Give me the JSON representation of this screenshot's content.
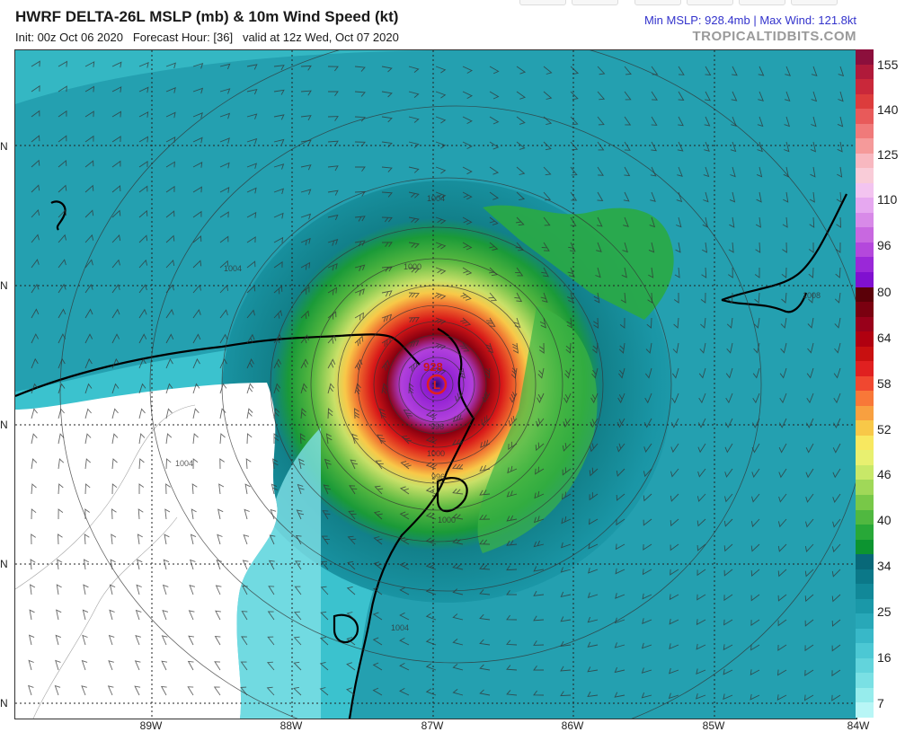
{
  "header": {
    "title": "HWRF DELTA-26L MSLP (mb) & 10m Wind Speed (kt)",
    "init": "Init: 00z Oct 06 2020",
    "forecast_hour": "Forecast Hour: [36]",
    "valid": "valid at 12z Wed, Oct 07 2020",
    "stats": "Min MSLP: 928.4mb  |  Max Wind: 121.8kt",
    "source": "TROPICALTIDBITS.COM"
  },
  "map": {
    "lon_labels": [
      "89W",
      "88W",
      "87W",
      "86W",
      "85W",
      "84W"
    ],
    "lat_labels": [
      "N",
      "N",
      "N",
      "N",
      "N"
    ],
    "center_pressure_label": "928",
    "low_marker": "L",
    "isobar_labels": [
      "1004",
      "1000",
      "996",
      "1004",
      "1004",
      "1000",
      "996",
      "1004",
      "1008",
      "1000"
    ]
  },
  "colorbar": {
    "labels": [
      "155",
      "140",
      "125",
      "110",
      "96",
      "80",
      "64",
      "58",
      "52",
      "46",
      "40",
      "34",
      "25",
      "16",
      "7"
    ],
    "colors": [
      "#8c0f3c",
      "#b01a3a",
      "#c9283a",
      "#dc3c3c",
      "#e85a5a",
      "#f07a7a",
      "#f59a9a",
      "#f8b8c0",
      "#f9ccd8",
      "#f3c4f0",
      "#e6a8f0",
      "#d88ae8",
      "#c868e0",
      "#b448dc",
      "#9a28d8",
      "#8010d0",
      "#5a0008",
      "#7a0010",
      "#98001a",
      "#b00010",
      "#c81010",
      "#e02020",
      "#f04830",
      "#f87838",
      "#f8a040",
      "#f8c848",
      "#f8e860",
      "#e8f070",
      "#c8e868",
      "#a0d858",
      "#78c848",
      "#50b840",
      "#28a838",
      "#0c9430",
      "#086878",
      "#0b7888",
      "#118898",
      "#1a98a8",
      "#28a8b8",
      "#38b8c8",
      "#4cc8d4",
      "#62d4dc",
      "#7ae0e4",
      "#96ecec",
      "#b8f6f6"
    ]
  }
}
